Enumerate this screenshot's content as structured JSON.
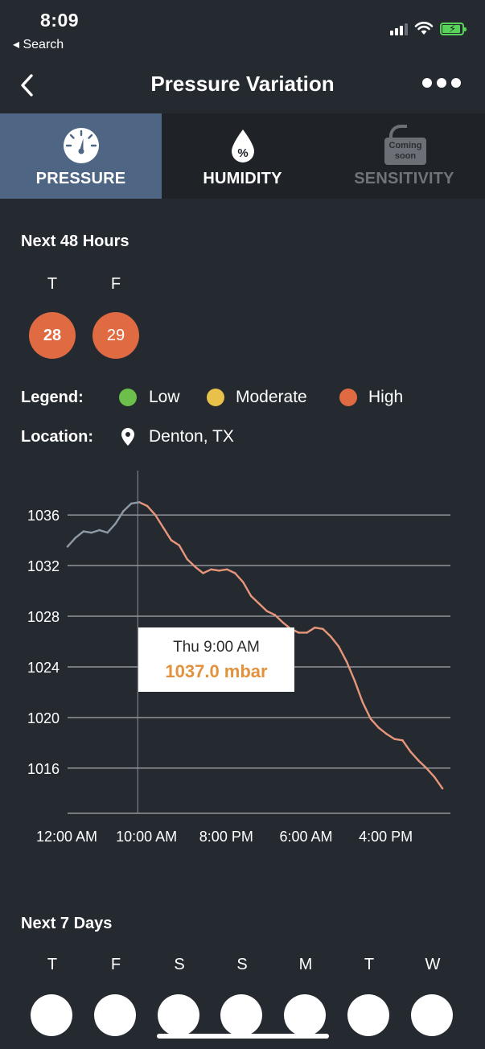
{
  "status_bar": {
    "time": "8:09",
    "back_label": "◂ Search"
  },
  "nav": {
    "title": "Pressure Variation"
  },
  "tabs": [
    {
      "label": "PRESSURE",
      "active": true,
      "icon": "gauge-icon"
    },
    {
      "label": "HUMIDITY",
      "active": false,
      "icon": "humidity-drop-icon"
    },
    {
      "label": "SENSITIVITY",
      "active": false,
      "disabled": true,
      "icon": "coming-soon-icon",
      "badge": "Coming soon"
    }
  ],
  "next48": {
    "title": "Next 48 Hours",
    "days": [
      {
        "letter": "T",
        "value": "28",
        "level": "High"
      },
      {
        "letter": "F",
        "value": "29",
        "level": "High"
      }
    ]
  },
  "legend": {
    "label": "Legend:",
    "items": [
      {
        "label": "Low",
        "color": "#6cbf4a"
      },
      {
        "label": "Moderate",
        "color": "#e7c14a"
      },
      {
        "label": "High",
        "color": "#e06a42"
      }
    ]
  },
  "location": {
    "label": "Location:",
    "value": "Denton, TX"
  },
  "chart_data": {
    "type": "line",
    "unit": "mbar",
    "y_ticks": [
      1016,
      1020,
      1024,
      1028,
      1032,
      1036
    ],
    "x_ticks": [
      "12:00 AM",
      "10:00 AM",
      "8:00 PM",
      "6:00 AM",
      "4:00 PM"
    ],
    "x_tick_hours": [
      0,
      10,
      20,
      30,
      40
    ],
    "x_range": [
      0,
      48
    ],
    "y_range": [
      1012.5,
      1039.5
    ],
    "grid": true,
    "series": [
      {
        "colors": {
          "past": "#8e9aa6",
          "future": "#e8967a"
        },
        "past_until_hour": 9,
        "points": [
          [
            0,
            1033.5
          ],
          [
            1,
            1034.2
          ],
          [
            2,
            1034.7
          ],
          [
            3,
            1034.6
          ],
          [
            4,
            1034.8
          ],
          [
            5,
            1034.6
          ],
          [
            6,
            1035.3
          ],
          [
            7,
            1036.3
          ],
          [
            8,
            1036.9
          ],
          [
            9,
            1037.0
          ],
          [
            10,
            1036.7
          ],
          [
            11,
            1036.0
          ],
          [
            12,
            1035.0
          ],
          [
            13,
            1034.0
          ],
          [
            14,
            1033.6
          ],
          [
            15,
            1032.5
          ],
          [
            16,
            1031.9
          ],
          [
            17,
            1031.4
          ],
          [
            18,
            1031.7
          ],
          [
            19,
            1031.6
          ],
          [
            20,
            1031.7
          ],
          [
            21,
            1031.4
          ],
          [
            22,
            1030.7
          ],
          [
            23,
            1029.6
          ],
          [
            24,
            1029.0
          ],
          [
            25,
            1028.4
          ],
          [
            26,
            1028.1
          ],
          [
            27,
            1027.5
          ],
          [
            28,
            1027.0
          ],
          [
            29,
            1026.7
          ],
          [
            30,
            1026.7
          ],
          [
            31,
            1027.1
          ],
          [
            32,
            1027.0
          ],
          [
            33,
            1026.4
          ],
          [
            34,
            1025.6
          ],
          [
            35,
            1024.4
          ],
          [
            36,
            1022.9
          ],
          [
            37,
            1021.2
          ],
          [
            38,
            1019.9
          ],
          [
            39,
            1019.2
          ],
          [
            40,
            1018.7
          ],
          [
            41,
            1018.3
          ],
          [
            42,
            1018.2
          ],
          [
            43,
            1017.3
          ],
          [
            44,
            1016.6
          ],
          [
            45,
            1016.0
          ],
          [
            46,
            1015.3
          ],
          [
            47,
            1014.4
          ]
        ]
      }
    ],
    "tooltip": {
      "hour": 9,
      "time": "Thu 9:00 AM",
      "value": "1037.0 mbar"
    }
  },
  "next7": {
    "title": "Next 7 Days",
    "days": [
      "T",
      "F",
      "S",
      "S",
      "M",
      "T",
      "W"
    ]
  }
}
